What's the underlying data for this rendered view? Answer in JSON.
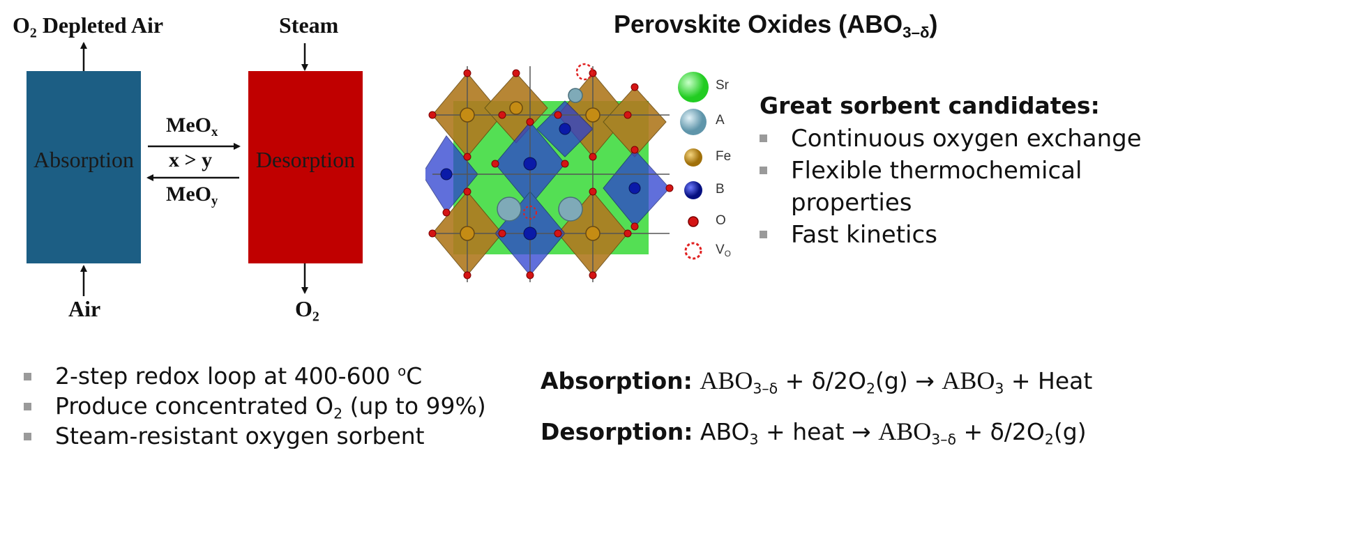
{
  "process": {
    "outlet_left_prefix": "O",
    "outlet_left_sub": "2",
    "outlet_left_rest": " Depleted Air",
    "steam_label": "Steam",
    "air_label": "Air",
    "o2_prefix": "O",
    "o2_sub": "2",
    "absorption_box": "Absorption",
    "desorption_box": "Desorption",
    "meox_prefix": "MeO",
    "meox_sub": "x",
    "condition": "x > y",
    "meoy_prefix": "MeO",
    "meoy_sub": "y",
    "colors": {
      "absorption": "#1c5e84",
      "desorption": "#c00000"
    }
  },
  "perovskite": {
    "title_prefix": "Perovskite Oxides (ABO",
    "title_sub": "3–δ",
    "title_suffix": ")",
    "legend": [
      {
        "label": "Sr",
        "color": "#2fd42f"
      },
      {
        "label": "A",
        "color": "#6fa3b8"
      },
      {
        "label": "Fe",
        "color": "#b8860b"
      },
      {
        "label": "B",
        "color": "#0a1aa8"
      },
      {
        "label": "O",
        "color": "#cc1111"
      },
      {
        "label": "V",
        "sub": "O",
        "color": "#e02020"
      }
    ]
  },
  "candidates": {
    "heading": "Great sorbent candidates:",
    "items": [
      "Continuous oxygen exchange",
      "Flexible thermochemical properties",
      "Fast kinetics"
    ]
  },
  "notes": {
    "n1_pre": "2-step redox loop at 400-600 ",
    "n1_sup": "o",
    "n1_post": "C",
    "n2_pre": "Produce concentrated O",
    "n2_sub": "2",
    "n2_post": " (up to 99%)",
    "n3": "Steam-resistant oxygen sorbent"
  },
  "equations": {
    "abs_label": "Absorption:",
    "abs_a": "ABO",
    "abs_a_sub": "3–δ",
    "abs_b": " + δ/2O",
    "abs_b_sub": "2",
    "abs_c": "(g) → ",
    "abs_d": "ABO",
    "abs_d_sub": "3",
    "abs_e": " + Heat",
    "des_label": "Desorption:",
    "des_a": " ABO",
    "des_a_sub": "3",
    "des_b": " + heat → ",
    "des_c": "ABO",
    "des_c_sub": "3–δ",
    "des_d": " + δ/2O",
    "des_d_sub": "2",
    "des_e": "(g)"
  }
}
